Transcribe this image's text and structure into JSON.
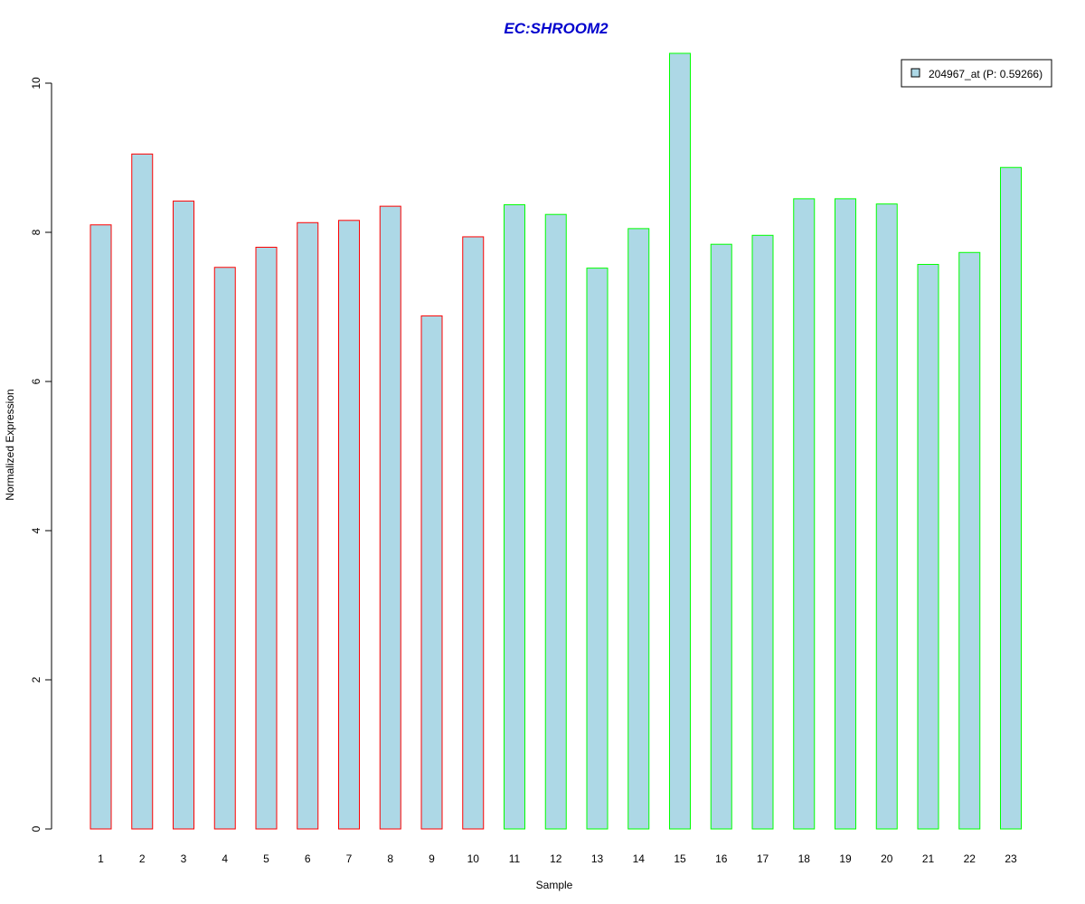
{
  "colors": {
    "bar_fill": "#add8e6",
    "group1_border": "#ff0000",
    "group2_border": "#00ff00",
    "title": "#0000cd",
    "axis": "#000000"
  },
  "chart_data": {
    "type": "bar",
    "title": "EC:SHROOM2",
    "xlabel": "Sample",
    "ylabel": "Normalized Expression",
    "ylim": [
      0,
      10.4
    ],
    "yticks": [
      0,
      2,
      4,
      6,
      8,
      10
    ],
    "grid": false,
    "legend": {
      "position": "top-right",
      "label": "204967_at (P: 0.59266)"
    },
    "categories": [
      "1",
      "2",
      "3",
      "4",
      "5",
      "6",
      "7",
      "8",
      "9",
      "10",
      "11",
      "12",
      "13",
      "14",
      "15",
      "16",
      "17",
      "18",
      "19",
      "20",
      "21",
      "22",
      "23"
    ],
    "values": [
      8.1,
      9.05,
      8.42,
      7.53,
      7.8,
      8.13,
      8.16,
      8.35,
      6.88,
      7.94,
      8.37,
      8.24,
      7.52,
      8.05,
      10.4,
      7.84,
      7.96,
      8.45,
      8.45,
      8.38,
      7.57,
      7.73,
      8.87
    ],
    "groups": [
      "group1",
      "group1",
      "group1",
      "group1",
      "group1",
      "group1",
      "group1",
      "group1",
      "group1",
      "group1",
      "group2",
      "group2",
      "group2",
      "group2",
      "group2",
      "group2",
      "group2",
      "group2",
      "group2",
      "group2",
      "group2",
      "group2",
      "group2"
    ]
  }
}
